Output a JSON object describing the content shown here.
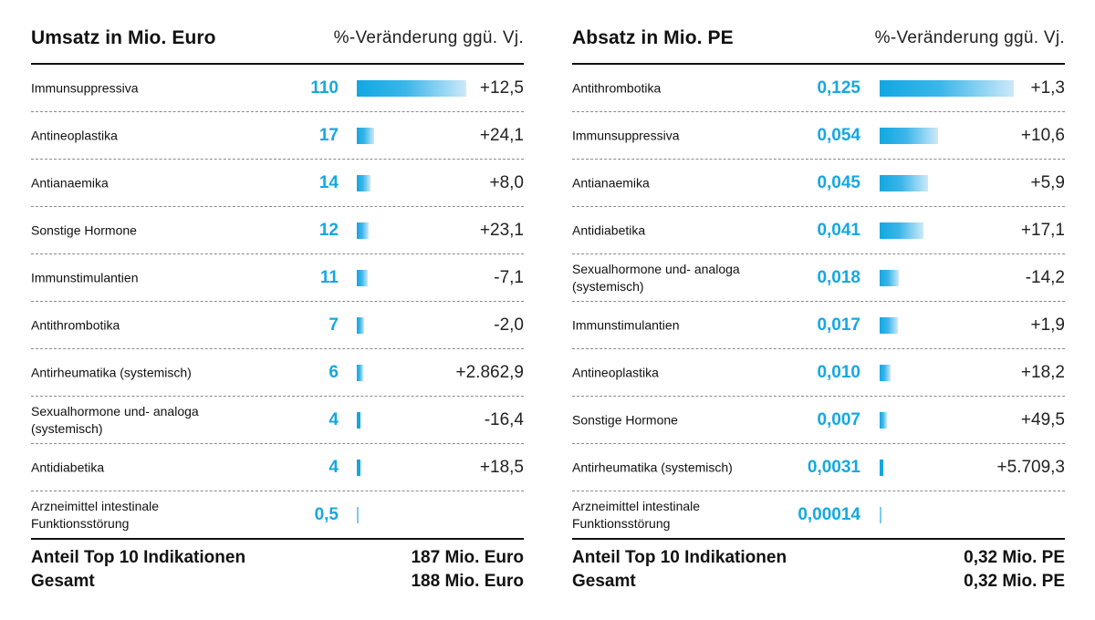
{
  "chart_data": [
    {
      "type": "bar",
      "title": "Umsatz in Mio. Euro",
      "subtitle": "%-Veränderung ggü. Vj.",
      "categories": [
        "Immunsuppressiva",
        "Antineoplastika",
        "Antianaemika",
        "Sonstige Hormone",
        "Immunstimulantien",
        "Antithrombotika",
        "Antirheumatika (systemisch)",
        "Sexualhormone und- analoga (systemisch)",
        "Antidiabetika",
        "Arzneimittel intestinale Funktionsstörung"
      ],
      "values": [
        110,
        17,
        14,
        12,
        11,
        7,
        6,
        4,
        4,
        0.5
      ],
      "value_labels": [
        "110",
        "17",
        "14",
        "12",
        "11",
        "7",
        "6",
        "4",
        "4",
        "0,5"
      ],
      "changes": [
        "+12,5",
        "+24,1",
        "+8,0",
        "+23,1",
        "-7,1",
        "-2,0",
        "+2.862,9",
        "-16,4",
        "+18,5",
        ""
      ],
      "footer": [
        {
          "label": "Anteil Top 10 Indikationen",
          "value": "187 Mio. Euro"
        },
        {
          "label": "Gesamt",
          "value": "188 Mio. Euro"
        }
      ]
    },
    {
      "type": "bar",
      "title": "Absatz in Mio. PE",
      "subtitle": "%-Veränderung ggü. Vj.",
      "categories": [
        "Antithrombotika",
        "Immunsuppressiva",
        "Antianaemika",
        "Antidiabetika",
        "Sexualhormone und- analoga (systemisch)",
        "Immunstimulantien",
        "Antineoplastika",
        "Sonstige Hormone",
        "Antirheumatika (systemisch)",
        "Arzneimittel intestinale Funktionsstörung"
      ],
      "values": [
        0.125,
        0.054,
        0.045,
        0.041,
        0.018,
        0.017,
        0.01,
        0.007,
        0.0031,
        0.00014
      ],
      "value_labels": [
        "0,125",
        "0,054",
        "0,045",
        "0,041",
        "0,018",
        "0,017",
        "0,010",
        "0,007",
        "0,0031",
        "0,00014"
      ],
      "changes": [
        "+1,3",
        "+10,6",
        "+5,9",
        "+17,1",
        "-14,2",
        "+1,9",
        "+18,2",
        "+49,5",
        "+5.709,3",
        ""
      ],
      "footer": [
        {
          "label": "Anteil Top 10 Indikationen",
          "value": "0,32 Mio. PE"
        },
        {
          "label": "Gesamt",
          "value": "0,32 Mio. PE"
        }
      ]
    }
  ]
}
